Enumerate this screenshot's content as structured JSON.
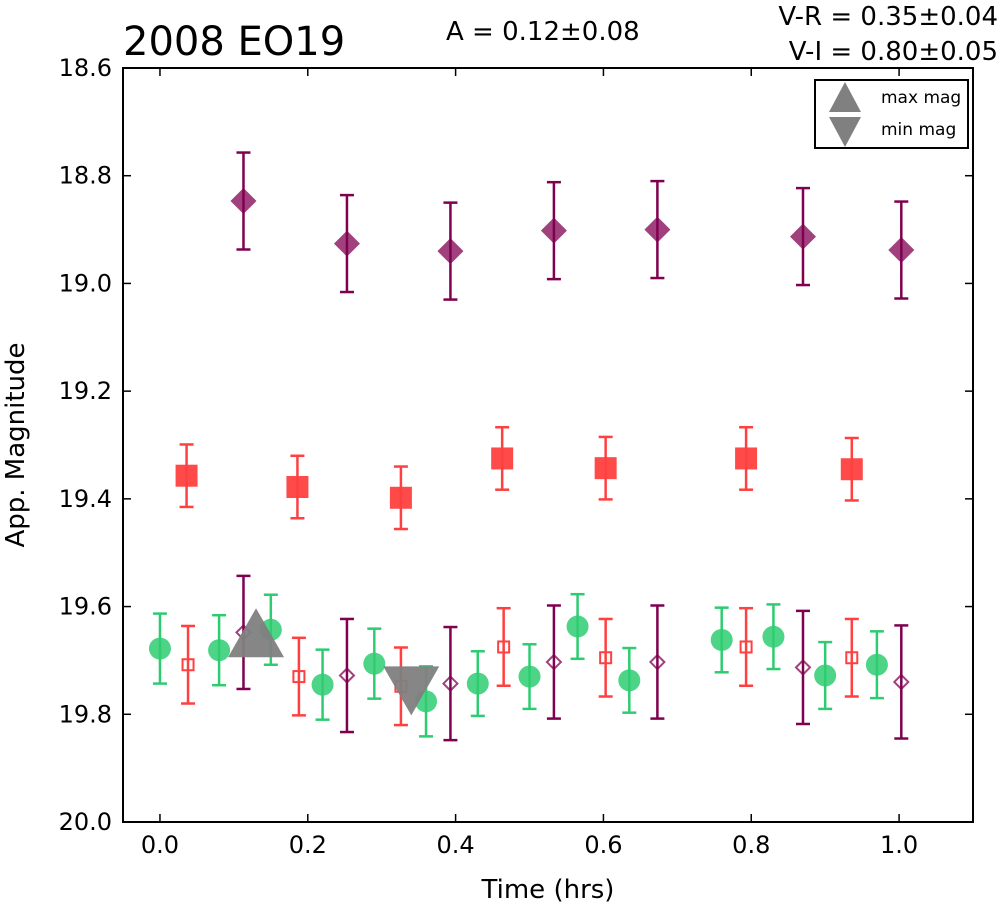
{
  "chart_data": {
    "type": "scatter",
    "title": "2008 EO19",
    "annotations": {
      "amplitude": "A  = 0.12±0.08",
      "color_vr": "V-R = 0.35±0.04",
      "color_vi": "V-I  = 0.80±0.05"
    },
    "xlabel": "Time (hrs)",
    "ylabel": "App. Magnitude",
    "xlim": [
      -0.05,
      1.1
    ],
    "ylim": [
      20.0,
      18.6
    ],
    "y_inverted": true,
    "x_ticks": [
      "0.0",
      "0.2",
      "0.4",
      "0.6",
      "0.8",
      "1.0"
    ],
    "y_ticks": [
      "18.6",
      "18.8",
      "19.0",
      "19.2",
      "19.4",
      "19.6",
      "19.8",
      "20.0"
    ],
    "grid": false,
    "legend": {
      "position": "top-right",
      "entries": [
        {
          "label": "max mag",
          "marker": "triangle-up",
          "color": "#808080"
        },
        {
          "label": "min mag",
          "marker": "triangle-down",
          "color": "#808080"
        }
      ]
    },
    "colors": {
      "green": "#2ecc71",
      "red": "#ff4040",
      "purple": "#800050",
      "gray": "#808080"
    },
    "series": [
      {
        "marker": "diamond-filled",
        "color": "#800050",
        "points": [
          {
            "x": 0.113,
            "y": 18.847,
            "err": 0.09
          },
          {
            "x": 0.253,
            "y": 18.926,
            "err": 0.09
          },
          {
            "x": 0.393,
            "y": 18.94,
            "err": 0.09
          },
          {
            "x": 0.533,
            "y": 18.902,
            "err": 0.09
          },
          {
            "x": 0.673,
            "y": 18.9,
            "err": 0.09
          },
          {
            "x": 0.87,
            "y": 18.913,
            "err": 0.09
          },
          {
            "x": 1.003,
            "y": 18.938,
            "err": 0.09
          }
        ]
      },
      {
        "marker": "square-filled",
        "color": "#ff4040",
        "points": [
          {
            "x": 0.036,
            "y": 19.357,
            "err": 0.058
          },
          {
            "x": 0.186,
            "y": 19.378,
            "err": 0.058
          },
          {
            "x": 0.326,
            "y": 19.398,
            "err": 0.058
          },
          {
            "x": 0.463,
            "y": 19.325,
            "err": 0.058
          },
          {
            "x": 0.603,
            "y": 19.343,
            "err": 0.058
          },
          {
            "x": 0.793,
            "y": 19.325,
            "err": 0.058
          },
          {
            "x": 0.936,
            "y": 19.345,
            "err": 0.058
          }
        ]
      },
      {
        "marker": "circle-filled",
        "color": "#2ecc71",
        "points": [
          {
            "x": 0.0,
            "y": 19.678,
            "err": 0.065
          },
          {
            "x": 0.08,
            "y": 19.681,
            "err": 0.065
          },
          {
            "x": 0.15,
            "y": 19.643,
            "err": 0.065
          },
          {
            "x": 0.22,
            "y": 19.745,
            "err": 0.065
          },
          {
            "x": 0.29,
            "y": 19.706,
            "err": 0.065
          },
          {
            "x": 0.36,
            "y": 19.776,
            "err": 0.065
          },
          {
            "x": 0.43,
            "y": 19.743,
            "err": 0.06
          },
          {
            "x": 0.5,
            "y": 19.73,
            "err": 0.06
          },
          {
            "x": 0.565,
            "y": 19.637,
            "err": 0.06
          },
          {
            "x": 0.635,
            "y": 19.737,
            "err": 0.06
          },
          {
            "x": 0.76,
            "y": 19.662,
            "err": 0.06
          },
          {
            "x": 0.83,
            "y": 19.656,
            "err": 0.06
          },
          {
            "x": 0.9,
            "y": 19.728,
            "err": 0.062
          },
          {
            "x": 0.97,
            "y": 19.708,
            "err": 0.062
          }
        ]
      },
      {
        "marker": "square-open",
        "color": "#ff4040",
        "points": [
          {
            "x": 0.038,
            "y": 19.708,
            "err": 0.072
          },
          {
            "x": 0.188,
            "y": 19.73,
            "err": 0.072
          },
          {
            "x": 0.326,
            "y": 19.748,
            "err": 0.072
          },
          {
            "x": 0.465,
            "y": 19.675,
            "err": 0.072
          },
          {
            "x": 0.603,
            "y": 19.695,
            "err": 0.072
          },
          {
            "x": 0.793,
            "y": 19.675,
            "err": 0.072
          },
          {
            "x": 0.936,
            "y": 19.695,
            "err": 0.072
          }
        ]
      },
      {
        "marker": "diamond-open",
        "color": "#800050",
        "points": [
          {
            "x": 0.113,
            "y": 19.648,
            "err": 0.105
          },
          {
            "x": 0.253,
            "y": 19.728,
            "err": 0.105
          },
          {
            "x": 0.393,
            "y": 19.743,
            "err": 0.105
          },
          {
            "x": 0.533,
            "y": 19.703,
            "err": 0.105
          },
          {
            "x": 0.673,
            "y": 19.703,
            "err": 0.105
          },
          {
            "x": 0.87,
            "y": 19.713,
            "err": 0.105
          },
          {
            "x": 1.003,
            "y": 19.74,
            "err": 0.105
          }
        ]
      },
      {
        "marker": "triangle-up",
        "color": "#808080",
        "points": [
          {
            "x": 0.13,
            "y": 19.655
          }
        ]
      },
      {
        "marker": "triangle-down",
        "color": "#808080",
        "points": [
          {
            "x": 0.34,
            "y": 19.75
          }
        ]
      }
    ]
  }
}
